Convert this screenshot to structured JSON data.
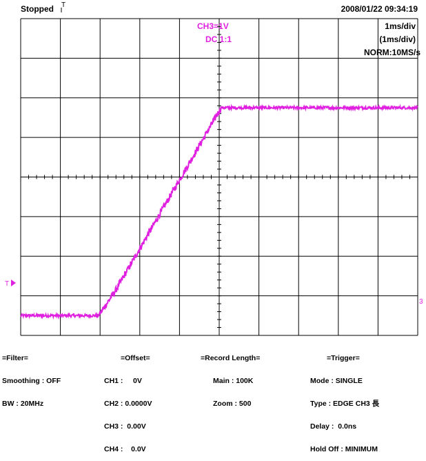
{
  "header": {
    "status": "Stopped",
    "datetime": "2008/01/22 09:34:19",
    "trigger_marker": "T"
  },
  "channel": {
    "label": "CH3=1V",
    "coupling": "DC 1:1",
    "color": "#e020e0"
  },
  "timebase": {
    "main": "1ms/div",
    "zoom": "(1ms/div)",
    "mode": "NORM:10MS/s"
  },
  "markers": {
    "level_marker": "T",
    "ground_marker": "3"
  },
  "trace": {
    "start_level_div": 0.5,
    "knee_time_div": 2.0,
    "ramp_end_time_div": 5.05,
    "end_level_div": 5.75,
    "low_level_time_range_div": [
      0,
      1.95
    ]
  },
  "footer": {
    "filter": [
      "=Filter=",
      "Smoothing : OFF",
      "BW : 20MHz"
    ],
    "offset": [
      "=Offset=",
      "CH1 :     0V",
      "CH2 : 0.0000V",
      "CH3 :  0.00V",
      "CH4 :    0.0V"
    ],
    "record": [
      "=Record Length=",
      "Main : 100K",
      "Zoom : 500"
    ],
    "trigger": [
      "=Trigger=",
      "Mode : SINGLE",
      "Type : EDGE CH3 ⻑",
      "Delay :  0.0ns",
      "Hold Off : MINIMUM"
    ]
  }
}
